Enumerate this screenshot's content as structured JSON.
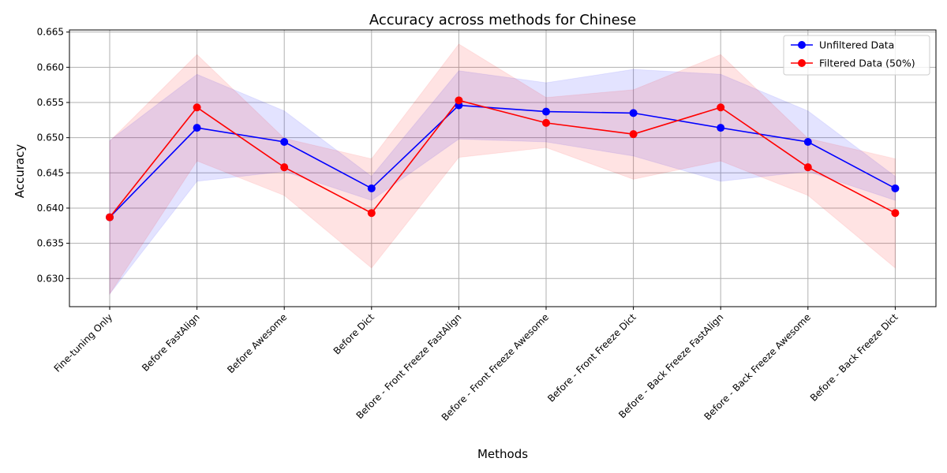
{
  "chart_data": {
    "type": "line",
    "title": "Accuracy across methods for Chinese",
    "xlabel": "Methods",
    "ylabel": "Accuracy",
    "ylim": [
      0.626,
      0.6653
    ],
    "yticks": [
      0.63,
      0.635,
      0.64,
      0.645,
      0.65,
      0.655,
      0.66,
      0.665
    ],
    "ytick_labels": [
      "0.630",
      "0.635",
      "0.640",
      "0.645",
      "0.650",
      "0.655",
      "0.660",
      "0.665"
    ],
    "grid": true,
    "legend_position": "top-right",
    "categories": [
      "Fine-tuning Only",
      "Before FastAlign",
      "Before Awesome",
      "Before Dict",
      "Before - Front Freeze FastAlign",
      "Before - Front Freeze Awesome",
      "Before - Front Freeze Dict",
      "Before - Back Freeze FastAlign",
      "Before - Back Freeze Awesome",
      "Before - Back Freeze Dict"
    ],
    "series": [
      {
        "name": "Unfiltered Data",
        "color": "#0000ff",
        "values": [
          0.6387,
          0.6514,
          0.6494,
          0.6428,
          0.6546,
          0.6537,
          0.6535,
          0.6514,
          0.6494,
          0.6428
        ],
        "lower": [
          0.6278,
          0.6438,
          0.6452,
          0.6411,
          0.6498,
          0.6494,
          0.6474,
          0.6438,
          0.6452,
          0.6411
        ],
        "upper": [
          0.6496,
          0.659,
          0.6538,
          0.6445,
          0.6595,
          0.6578,
          0.6597,
          0.659,
          0.6538,
          0.6445
        ]
      },
      {
        "name": "Filtered Data (50%)",
        "color": "#ff0000",
        "values": [
          0.6387,
          0.6543,
          0.6458,
          0.6393,
          0.6553,
          0.6521,
          0.6505,
          0.6543,
          0.6458,
          0.6393
        ],
        "lower": [
          0.6278,
          0.6467,
          0.6418,
          0.6315,
          0.6472,
          0.6486,
          0.6441,
          0.6467,
          0.6418,
          0.6315
        ],
        "upper": [
          0.6495,
          0.6618,
          0.6499,
          0.647,
          0.6633,
          0.6557,
          0.6568,
          0.6618,
          0.6499,
          0.647
        ]
      }
    ]
  }
}
